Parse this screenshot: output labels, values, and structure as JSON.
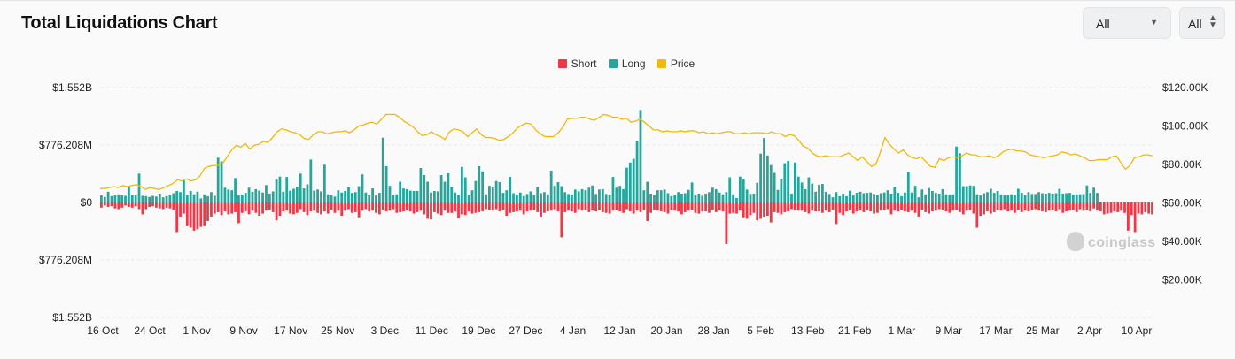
{
  "header": {
    "title": "Total Liquidations Chart",
    "range_select": "All",
    "coin_select": "All"
  },
  "colors": {
    "short": "#f23645",
    "long": "#26a69a",
    "price": "#f0b90b",
    "grid": "#ebebeb",
    "axis_text": "#222222"
  },
  "watermark": "coinglass",
  "chart_data": {
    "type": "bar",
    "title": "Total Liquidations Chart",
    "legend": {
      "position": "top-center",
      "entries": [
        "Short",
        "Long",
        "Price"
      ]
    },
    "grid": true,
    "y_left": {
      "ticks": [
        1552,
        776.208,
        0,
        -776.208,
        -1552
      ],
      "tick_labels": [
        "$1.552B",
        "$776.208M",
        "$0",
        "$776.208M",
        "$1.552B"
      ],
      "unit": "USD millions",
      "range": [
        -1552,
        1552
      ]
    },
    "y_right": {
      "ticks": [
        120,
        100,
        80,
        60,
        40,
        20
      ],
      "tick_labels": [
        "$120.00K",
        "$100.00K",
        "$80.00K",
        "$60.00K",
        "$40.00K",
        "$20.00K"
      ],
      "unit": "USD thousands",
      "range": [
        0,
        130
      ]
    },
    "x_axis": {
      "start_date": "16 Oct",
      "tick_labels": [
        "16 Oct",
        "24 Oct",
        "1 Nov",
        "9 Nov",
        "17 Nov",
        "25 Nov",
        "3 Dec",
        "11 Dec",
        "19 Dec",
        "27 Dec",
        "4 Jan",
        "12 Jan",
        "20 Jan",
        "28 Jan",
        "5 Feb",
        "13 Feb",
        "21 Feb",
        "1 Mar",
        "9 Mar",
        "17 Mar",
        "25 Mar",
        "2 Apr",
        "10 Apr"
      ]
    },
    "series": [
      {
        "name": "Long",
        "unit": "USD millions",
        "values": [
          95,
          75,
          145,
          85,
          95,
          110,
          95,
          90,
          210,
          100,
          95,
          390,
          90,
          85,
          75,
          90,
          80,
          120,
          70,
          85,
          100,
          125,
          155,
          140,
          300,
          100,
          155,
          110,
          145,
          55,
          110,
          85,
          140,
          90,
          605,
          555,
          200,
          175,
          165,
          330,
          95,
          105,
          130,
          200,
          145,
          180,
          160,
          135,
          235,
          120,
          150,
          310,
          350,
          145,
          345,
          160,
          185,
          210,
          390,
          190,
          245,
          580,
          160,
          175,
          150,
          510,
          110,
          100,
          80,
          165,
          135,
          155,
          210,
          130,
          140,
          220,
          380,
          135,
          105,
          190,
          95,
          130,
          875,
          490,
          225,
          95,
          110,
          280,
          190,
          180,
          160,
          155,
          155,
          465,
          370,
          280,
          135,
          155,
          150,
          370,
          280,
          395,
          210,
          135,
          100,
          480,
          340,
          95,
          165,
          290,
          490,
          420,
          110,
          225,
          205,
          290,
          275,
          130,
          165,
          345,
          125,
          105,
          135,
          85,
          115,
          150,
          105,
          205,
          125,
          140,
          110,
          430,
          225,
          275,
          220,
          140,
          115,
          105,
          175,
          150,
          180,
          165,
          200,
          230,
          115,
          175,
          180,
          115,
          105,
          345,
          200,
          225,
          180,
          470,
          540,
          590,
          825,
          1250,
          165,
          280,
          120,
          100,
          165,
          165,
          175,
          125,
          85,
          100,
          140,
          120,
          125,
          170,
          270,
          105,
          120,
          90,
          120,
          140,
          200,
          180,
          135,
          110,
          140,
          340,
          110,
          60,
          350,
          315,
          175,
          115,
          120,
          265,
          660,
          870,
          635,
          505,
          400,
          170,
          310,
          530,
          560,
          120,
          540,
          350,
          270,
          180,
          340,
          255,
          145,
          240,
          250,
          145,
          115,
          70,
          140,
          85,
          120,
          85,
          160,
          95,
          130,
          145,
          125,
          130,
          135,
          115,
          105,
          125,
          135,
          165,
          120,
          215,
          130,
          85,
          135,
          415,
          135,
          225,
          70,
          175,
          110,
          195,
          155,
          130,
          120,
          180,
          110,
          105,
          110,
          755,
          665,
          220,
          220,
          230,
          225,
          110,
          95,
          125,
          140,
          185,
          130,
          155,
          110,
          95,
          100,
          110,
          100,
          185,
          130,
          95,
          140,
          115,
          115,
          140,
          125,
          120,
          130,
          120,
          125,
          185,
          120,
          125,
          130,
          105,
          110,
          110,
          115,
          230,
          130,
          200,
          130
        ],
        "note": "visible bar tops in the screenshot, in order left to right"
      },
      {
        "name": "Short",
        "unit": "USD millions",
        "values": [
          -70,
          -40,
          -60,
          -50,
          -80,
          -90,
          -70,
          -40,
          -60,
          -70,
          -50,
          -90,
          -160,
          -90,
          -60,
          -50,
          -70,
          -80,
          -90,
          -70,
          -80,
          -100,
          -400,
          -190,
          -150,
          -320,
          -340,
          -380,
          -360,
          -330,
          -320,
          -250,
          -190,
          -150,
          -130,
          -170,
          -120,
          -160,
          -150,
          -130,
          -280,
          -140,
          -120,
          -160,
          -110,
          -140,
          -180,
          -150,
          -110,
          -100,
          -130,
          -240,
          -180,
          -120,
          -110,
          -150,
          -160,
          -140,
          -90,
          -130,
          -170,
          -120,
          -110,
          -140,
          -160,
          -120,
          -150,
          -100,
          -140,
          -110,
          -180,
          -110,
          -90,
          -140,
          -130,
          -200,
          -110,
          -90,
          -120,
          -110,
          -140,
          -160,
          -100,
          -120,
          -110,
          -90,
          -140,
          -130,
          -120,
          -100,
          -120,
          -150,
          -130,
          -110,
          -160,
          -220,
          -230,
          -130,
          -150,
          -170,
          -110,
          -140,
          -140,
          -120,
          -210,
          -160,
          -170,
          -120,
          -150,
          -140,
          -130,
          -120,
          -90,
          -100,
          -110,
          -90,
          -120,
          -100,
          -180,
          -140,
          -130,
          -120,
          -110,
          -160,
          -120,
          -110,
          -100,
          -130,
          -190,
          -140,
          -120,
          -110,
          -90,
          -120,
          -470,
          -130,
          -110,
          -120,
          -140,
          -90,
          -110,
          -100,
          -130,
          -110,
          -120,
          -100,
          -130,
          -140,
          -150,
          -110,
          -100,
          -120,
          -140,
          -90,
          -120,
          -150,
          -110,
          -130,
          -100,
          -250,
          -140,
          -100,
          -110,
          -120,
          -130,
          -150,
          -100,
          -110,
          -120,
          -160,
          -130,
          -110,
          -100,
          -140,
          -150,
          -120,
          -120,
          -140,
          -100,
          -130,
          -110,
          -120,
          -560,
          -150,
          -140,
          -150,
          -110,
          -200,
          -220,
          -170,
          -140,
          -240,
          -220,
          -190,
          -180,
          -270,
          -130,
          -140,
          -160,
          -130,
          -120,
          -90,
          -100,
          -110,
          -110,
          -130,
          -150,
          -110,
          -120,
          -120,
          -140,
          -110,
          -130,
          -100,
          -290,
          -140,
          -170,
          -120,
          -100,
          -150,
          -120,
          -110,
          -130,
          -100,
          -120,
          -150,
          -140,
          -110,
          -100,
          -90,
          -160,
          -110,
          -120,
          -100,
          -120,
          -130,
          -110,
          -140,
          -190,
          -100,
          -130,
          -150,
          -120,
          -110,
          -90,
          -100,
          -120,
          -140,
          -110,
          -100,
          -130,
          -160,
          -110,
          -100,
          -150,
          -340,
          -180,
          -160,
          -120,
          -150,
          -130,
          -100,
          -110,
          -90,
          -120,
          -110,
          -140,
          -100,
          -130,
          -110,
          -120,
          -100,
          -90,
          -110,
          -120,
          -130,
          -110,
          -100,
          -120,
          -90,
          -140,
          -120,
          -110,
          -100,
          -130,
          -90,
          -110,
          -100,
          -120,
          -80,
          -110,
          -120,
          -160,
          -150,
          -140,
          -120,
          -130,
          -110,
          -140,
          -380,
          -170,
          -400,
          -150,
          -160,
          -130,
          -150,
          -160
        ],
        "note": "visible bar bottoms, negative below $0 axis"
      },
      {
        "name": "Price",
        "unit": "USD thousands",
        "values": [
          67.5,
          67.5,
          68.0,
          68.5,
          68.0,
          69.0,
          68.5,
          69.0,
          69.5,
          68.5,
          67.0,
          68.0,
          67.5,
          67.0,
          68.0,
          69.0,
          70.0,
          72.0,
          71.5,
          72.5,
          71.5,
          72.0,
          74.0,
          78.0,
          79.0,
          79.5,
          79.5,
          80.5,
          84.0,
          87.5,
          90.0,
          89.0,
          91.0,
          88.0,
          90.0,
          90.5,
          92.0,
          91.5,
          94.0,
          97.0,
          98.5,
          98.0,
          97.0,
          96.5,
          95.5,
          93.5,
          93.0,
          95.5,
          97.0,
          97.0,
          96.0,
          96.5,
          97.0,
          97.0,
          97.5,
          96.5,
          98.0,
          100.0,
          100.5,
          101.5,
          102.0,
          101.0,
          103.5,
          106.0,
          106.0,
          106.0,
          104.5,
          102.5,
          101.0,
          99.5,
          97.0,
          95.0,
          95.5,
          97.0,
          95.5,
          94.5,
          93.0,
          97.0,
          98.5,
          98.0,
          97.0,
          94.5,
          96.5,
          98.5,
          95.5,
          94.0,
          94.0,
          93.5,
          92.5,
          93.0,
          94.5,
          96.5,
          99.0,
          100.5,
          101.5,
          101.0,
          98.0,
          96.0,
          94.5,
          94.5,
          94.5,
          96.5,
          99.5,
          103.5,
          104.0,
          104.0,
          104.5,
          104.5,
          103.5,
          103.0,
          104.5,
          106.0,
          105.5,
          104.5,
          104.5,
          103.5,
          104.0,
          102.0,
          102.5,
          103.5,
          102.0,
          100.0,
          98.0,
          98.0,
          97.0,
          97.5,
          97.0,
          97.0,
          97.5,
          97.0,
          97.5,
          97.5,
          96.5,
          97.0,
          96.0,
          96.5,
          96.0,
          96.5,
          97.0,
          97.0,
          96.0,
          96.0,
          96.5,
          96.0,
          96.5,
          96.5,
          96.5,
          96.0,
          97.0,
          96.0,
          96.0,
          94.5,
          95.5,
          95.0,
          92.5,
          89.5,
          88.5,
          86.0,
          84.5,
          84.0,
          84.5,
          84.0,
          84.0,
          84.0,
          85.0,
          86.0,
          84.0,
          82.0,
          84.0,
          81.5,
          79.0,
          80.0,
          86.5,
          94.0,
          90.5,
          88.0,
          86.0,
          87.5,
          85.0,
          83.5,
          83.0,
          84.0,
          81.5,
          79.0,
          78.5,
          83.0,
          82.0,
          83.5,
          84.0,
          83.5,
          84.5,
          86.0,
          85.0,
          85.0,
          84.0,
          84.0,
          84.5,
          83.5,
          84.5,
          86.5,
          87.5,
          88.0,
          87.0,
          87.0,
          86.5,
          85.0,
          84.5,
          84.0,
          83.5,
          84.0,
          84.5,
          85.0,
          86.5,
          86.0,
          85.0,
          85.5,
          84.5,
          83.5,
          82.0,
          82.0,
          82.5,
          82.5,
          82.5,
          84.0,
          84.5,
          81.0,
          77.5,
          79.5,
          83.5,
          84.0,
          85.0,
          85.0,
          84.5
        ],
        "note": "price line, read against right axis"
      }
    ]
  }
}
